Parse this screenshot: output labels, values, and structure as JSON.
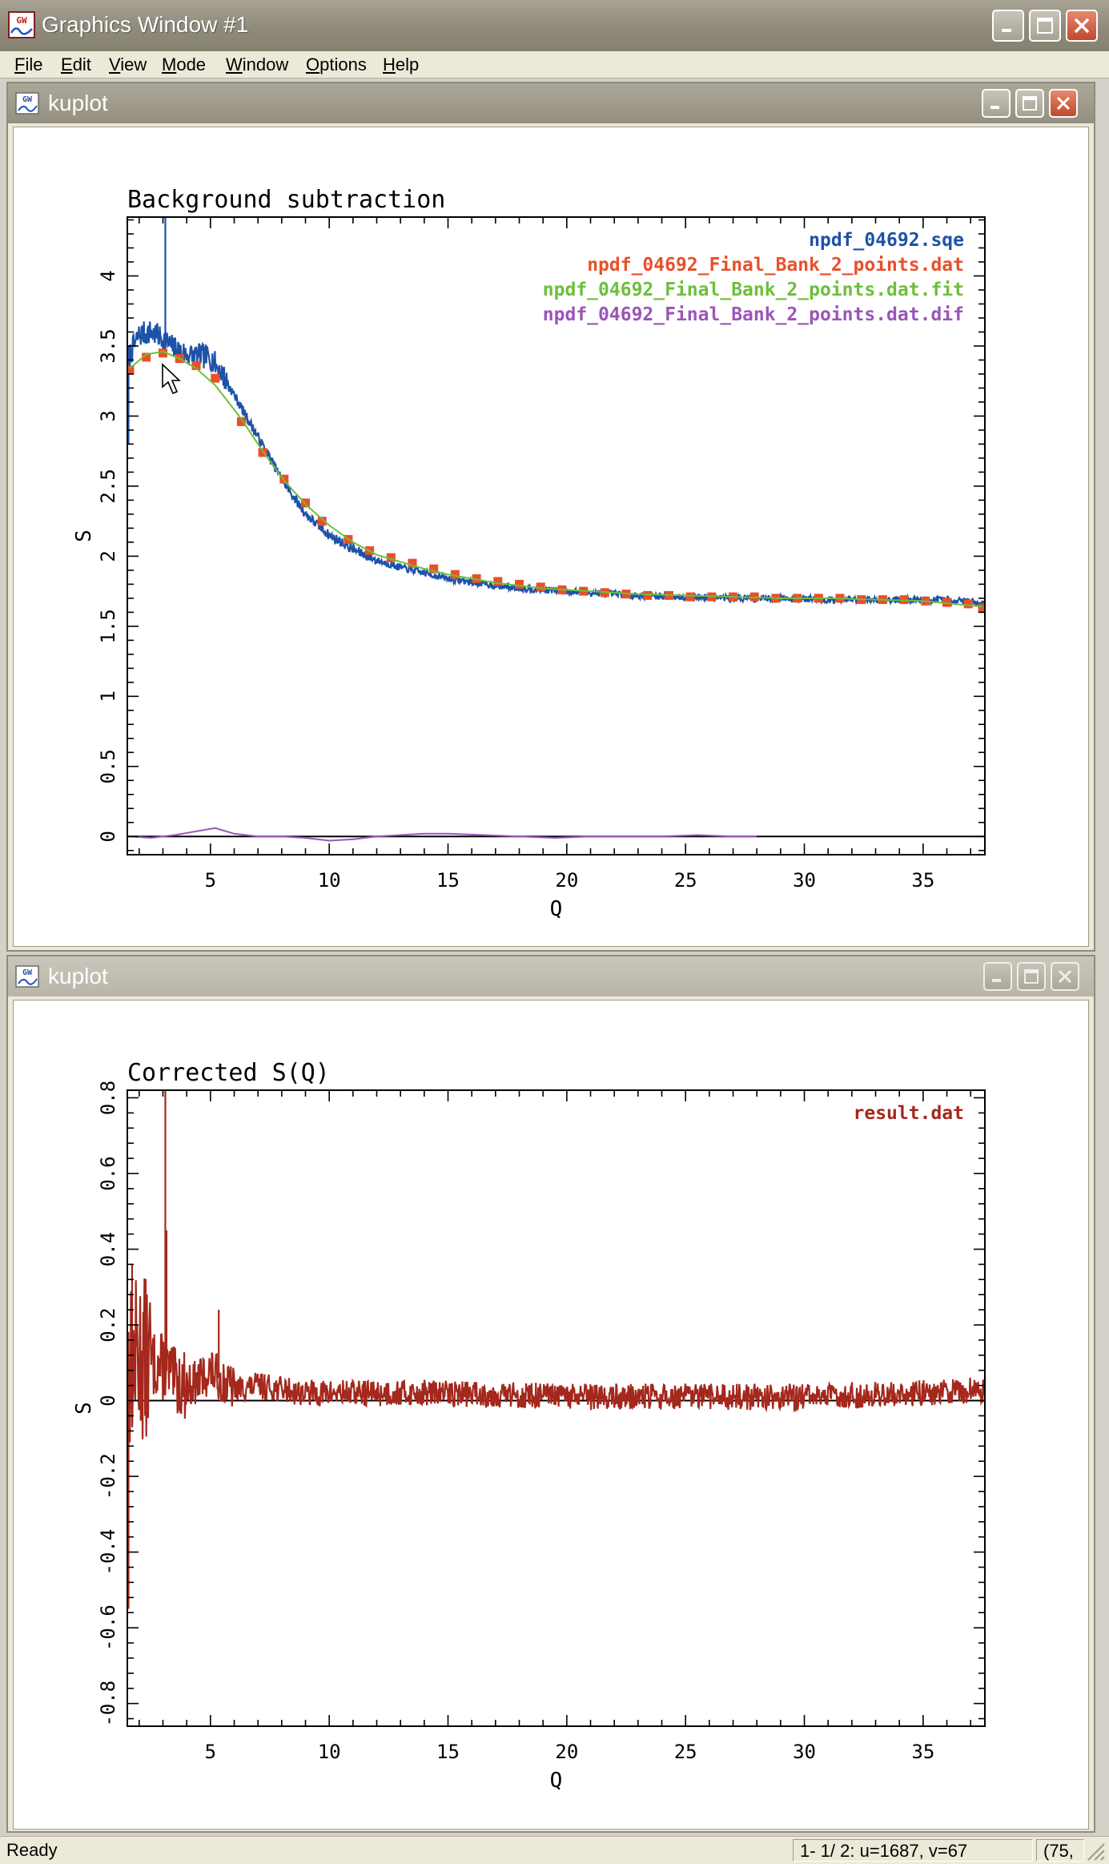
{
  "app": {
    "title": "Graphics Window #1",
    "logo_label": "GW",
    "menu": [
      {
        "label": "File",
        "accel": "F"
      },
      {
        "label": "Edit",
        "accel": "E"
      },
      {
        "label": "View",
        "accel": "V"
      },
      {
        "label": "Mode",
        "accel": "M"
      },
      {
        "label": "Window",
        "accel": "W"
      },
      {
        "label": "Options",
        "accel": "O"
      },
      {
        "label": "Help",
        "accel": "H"
      }
    ]
  },
  "windows": [
    {
      "title": "kuplot",
      "state": "active"
    },
    {
      "title": "kuplot",
      "state": "inactive"
    }
  ],
  "status": {
    "text": "Ready",
    "coords": "1- 1/ 2: u=1687, v=67",
    "extra": "(75,"
  },
  "colors": {
    "blue": "#1d52a8",
    "red": "#e8502a",
    "green": "#6cbf3a",
    "purple": "#9a55b8",
    "darkred": "#a4281c"
  },
  "chart_data": [
    {
      "type": "line",
      "title": "Background subtraction",
      "xlabel": "Q",
      "ylabel": "S",
      "xlim": [
        1.5,
        37.6
      ],
      "ylim": [
        -0.13,
        4.42
      ],
      "xticks": [
        5,
        10,
        15,
        20,
        25,
        30,
        35
      ],
      "yticks": [
        0,
        0.5,
        1,
        1.5,
        2,
        2.5,
        3,
        3.5,
        4
      ],
      "legend": "top-right",
      "zero_line": true,
      "series": [
        {
          "name": "npdf_04692.sqe",
          "color": "blue",
          "style": "noisy-line",
          "x": [
            1.5,
            2.0,
            2.5,
            3.0,
            3.5,
            4.0,
            4.5,
            5.0,
            5.5,
            6.0,
            7.0,
            8.0,
            9.0,
            10.0,
            11.0,
            12.0,
            13.0,
            14.0,
            15.0,
            17.0,
            19.0,
            21.0,
            23.0,
            25.0,
            27.0,
            29.0,
            31.0,
            33.0,
            35.0,
            37.0,
            37.6
          ],
          "y": [
            3.4,
            3.58,
            3.6,
            3.55,
            3.48,
            3.44,
            3.43,
            3.42,
            3.3,
            3.15,
            2.85,
            2.55,
            2.3,
            2.15,
            2.05,
            1.97,
            1.92,
            1.88,
            1.84,
            1.79,
            1.76,
            1.74,
            1.72,
            1.71,
            1.7,
            1.7,
            1.69,
            1.69,
            1.69,
            1.68,
            1.66
          ],
          "spikes": [
            {
              "x": 3.1,
              "y": 4.42
            },
            {
              "x": 1.55,
              "y": 2.8
            }
          ]
        },
        {
          "name": "npdf_04692_Final_Bank_2_points.dat",
          "color": "red",
          "style": "markers",
          "x": [
            1.6,
            2.3,
            3.0,
            3.7,
            4.4,
            5.2,
            6.3,
            7.2,
            8.1,
            9.0,
            9.7,
            10.8,
            11.7,
            12.6,
            13.5,
            14.4,
            15.3,
            16.2,
            17.1,
            18.0,
            18.9,
            19.8,
            20.7,
            21.6,
            22.5,
            23.4,
            24.3,
            25.2,
            26.1,
            27.0,
            27.9,
            28.8,
            29.7,
            30.6,
            31.5,
            32.4,
            33.3,
            34.2,
            35.1,
            36.0,
            36.9,
            37.5
          ],
          "y": [
            3.33,
            3.42,
            3.45,
            3.41,
            3.36,
            3.27,
            2.96,
            2.74,
            2.55,
            2.38,
            2.25,
            2.12,
            2.04,
            1.99,
            1.95,
            1.91,
            1.87,
            1.84,
            1.82,
            1.8,
            1.78,
            1.76,
            1.75,
            1.74,
            1.73,
            1.72,
            1.72,
            1.71,
            1.71,
            1.71,
            1.71,
            1.7,
            1.7,
            1.7,
            1.7,
            1.69,
            1.69,
            1.69,
            1.68,
            1.67,
            1.66,
            1.63
          ]
        },
        {
          "name": "npdf_04692_Final_Bank_2_points.dat.fit",
          "color": "green",
          "style": "line",
          "x": [
            1.6,
            2.3,
            3.0,
            3.7,
            4.4,
            5.2,
            6.3,
            7.2,
            8.1,
            9.0,
            10.0,
            11.0,
            12.0,
            13.0,
            14.0,
            15.0,
            17.0,
            19.0,
            21.0,
            23.0,
            25.0,
            27.0,
            29.0,
            31.0,
            33.0,
            35.0,
            37.5
          ],
          "y": [
            3.34,
            3.44,
            3.46,
            3.41,
            3.34,
            3.22,
            2.98,
            2.75,
            2.54,
            2.37,
            2.22,
            2.1,
            2.01,
            1.96,
            1.91,
            1.87,
            1.81,
            1.77,
            1.75,
            1.73,
            1.72,
            1.71,
            1.7,
            1.7,
            1.69,
            1.68,
            1.64
          ]
        },
        {
          "name": "npdf_04692_Final_Bank_2_points.dat.dif",
          "color": "purple",
          "style": "line",
          "x": [
            1.6,
            2.5,
            3.5,
            4.5,
            5.2,
            6.0,
            7.0,
            8.0,
            9.0,
            10.0,
            11.0,
            12.0,
            13.0,
            14.0,
            15.0,
            16.5,
            18.0,
            19.5,
            21.0,
            22.5,
            24.0,
            25.5,
            27.0,
            28.0
          ],
          "y": [
            0.0,
            -0.01,
            0.01,
            0.04,
            0.06,
            0.02,
            0.0,
            0.0,
            -0.01,
            -0.03,
            -0.02,
            0.0,
            0.01,
            0.02,
            0.02,
            0.01,
            0.0,
            -0.01,
            0.0,
            0.0,
            0.0,
            0.01,
            0.0,
            0.0
          ]
        }
      ]
    },
    {
      "type": "line",
      "title": "Corrected S(Q)",
      "xlabel": "Q",
      "ylabel": "S",
      "xlim": [
        1.5,
        37.6
      ],
      "ylim": [
        -0.86,
        0.82
      ],
      "xticks": [
        5,
        10,
        15,
        20,
        25,
        30,
        35
      ],
      "yticks": [
        -0.8,
        -0.6,
        -0.4,
        -0.2,
        0,
        0.2,
        0.4,
        0.6,
        0.8
      ],
      "legend": "top-right",
      "zero_line": true,
      "series": [
        {
          "name": "result.dat",
          "color": "darkred",
          "style": "noisy-line",
          "x": [
            1.5,
            2.0,
            2.5,
            3.0,
            3.5,
            4.0,
            4.5,
            5.0,
            5.5,
            6.0,
            7.0,
            8.0,
            9.0,
            10.0,
            12.0,
            15.0,
            20.0,
            25.0,
            30.0,
            35.0,
            37.6
          ],
          "y": [
            0.08,
            0.12,
            0.1,
            0.09,
            0.05,
            0.04,
            0.05,
            0.08,
            0.05,
            0.03,
            0.04,
            0.03,
            0.02,
            0.02,
            0.02,
            0.02,
            0.01,
            0.01,
            0.01,
            0.02,
            0.03
          ],
          "spikes": [
            {
              "x": 3.1,
              "y": 0.82
            },
            {
              "x": 3.15,
              "y": 0.45
            },
            {
              "x": 1.55,
              "y": -0.55
            },
            {
              "x": 1.7,
              "y": 0.36
            },
            {
              "x": 5.35,
              "y": 0.24
            }
          ]
        }
      ]
    }
  ]
}
